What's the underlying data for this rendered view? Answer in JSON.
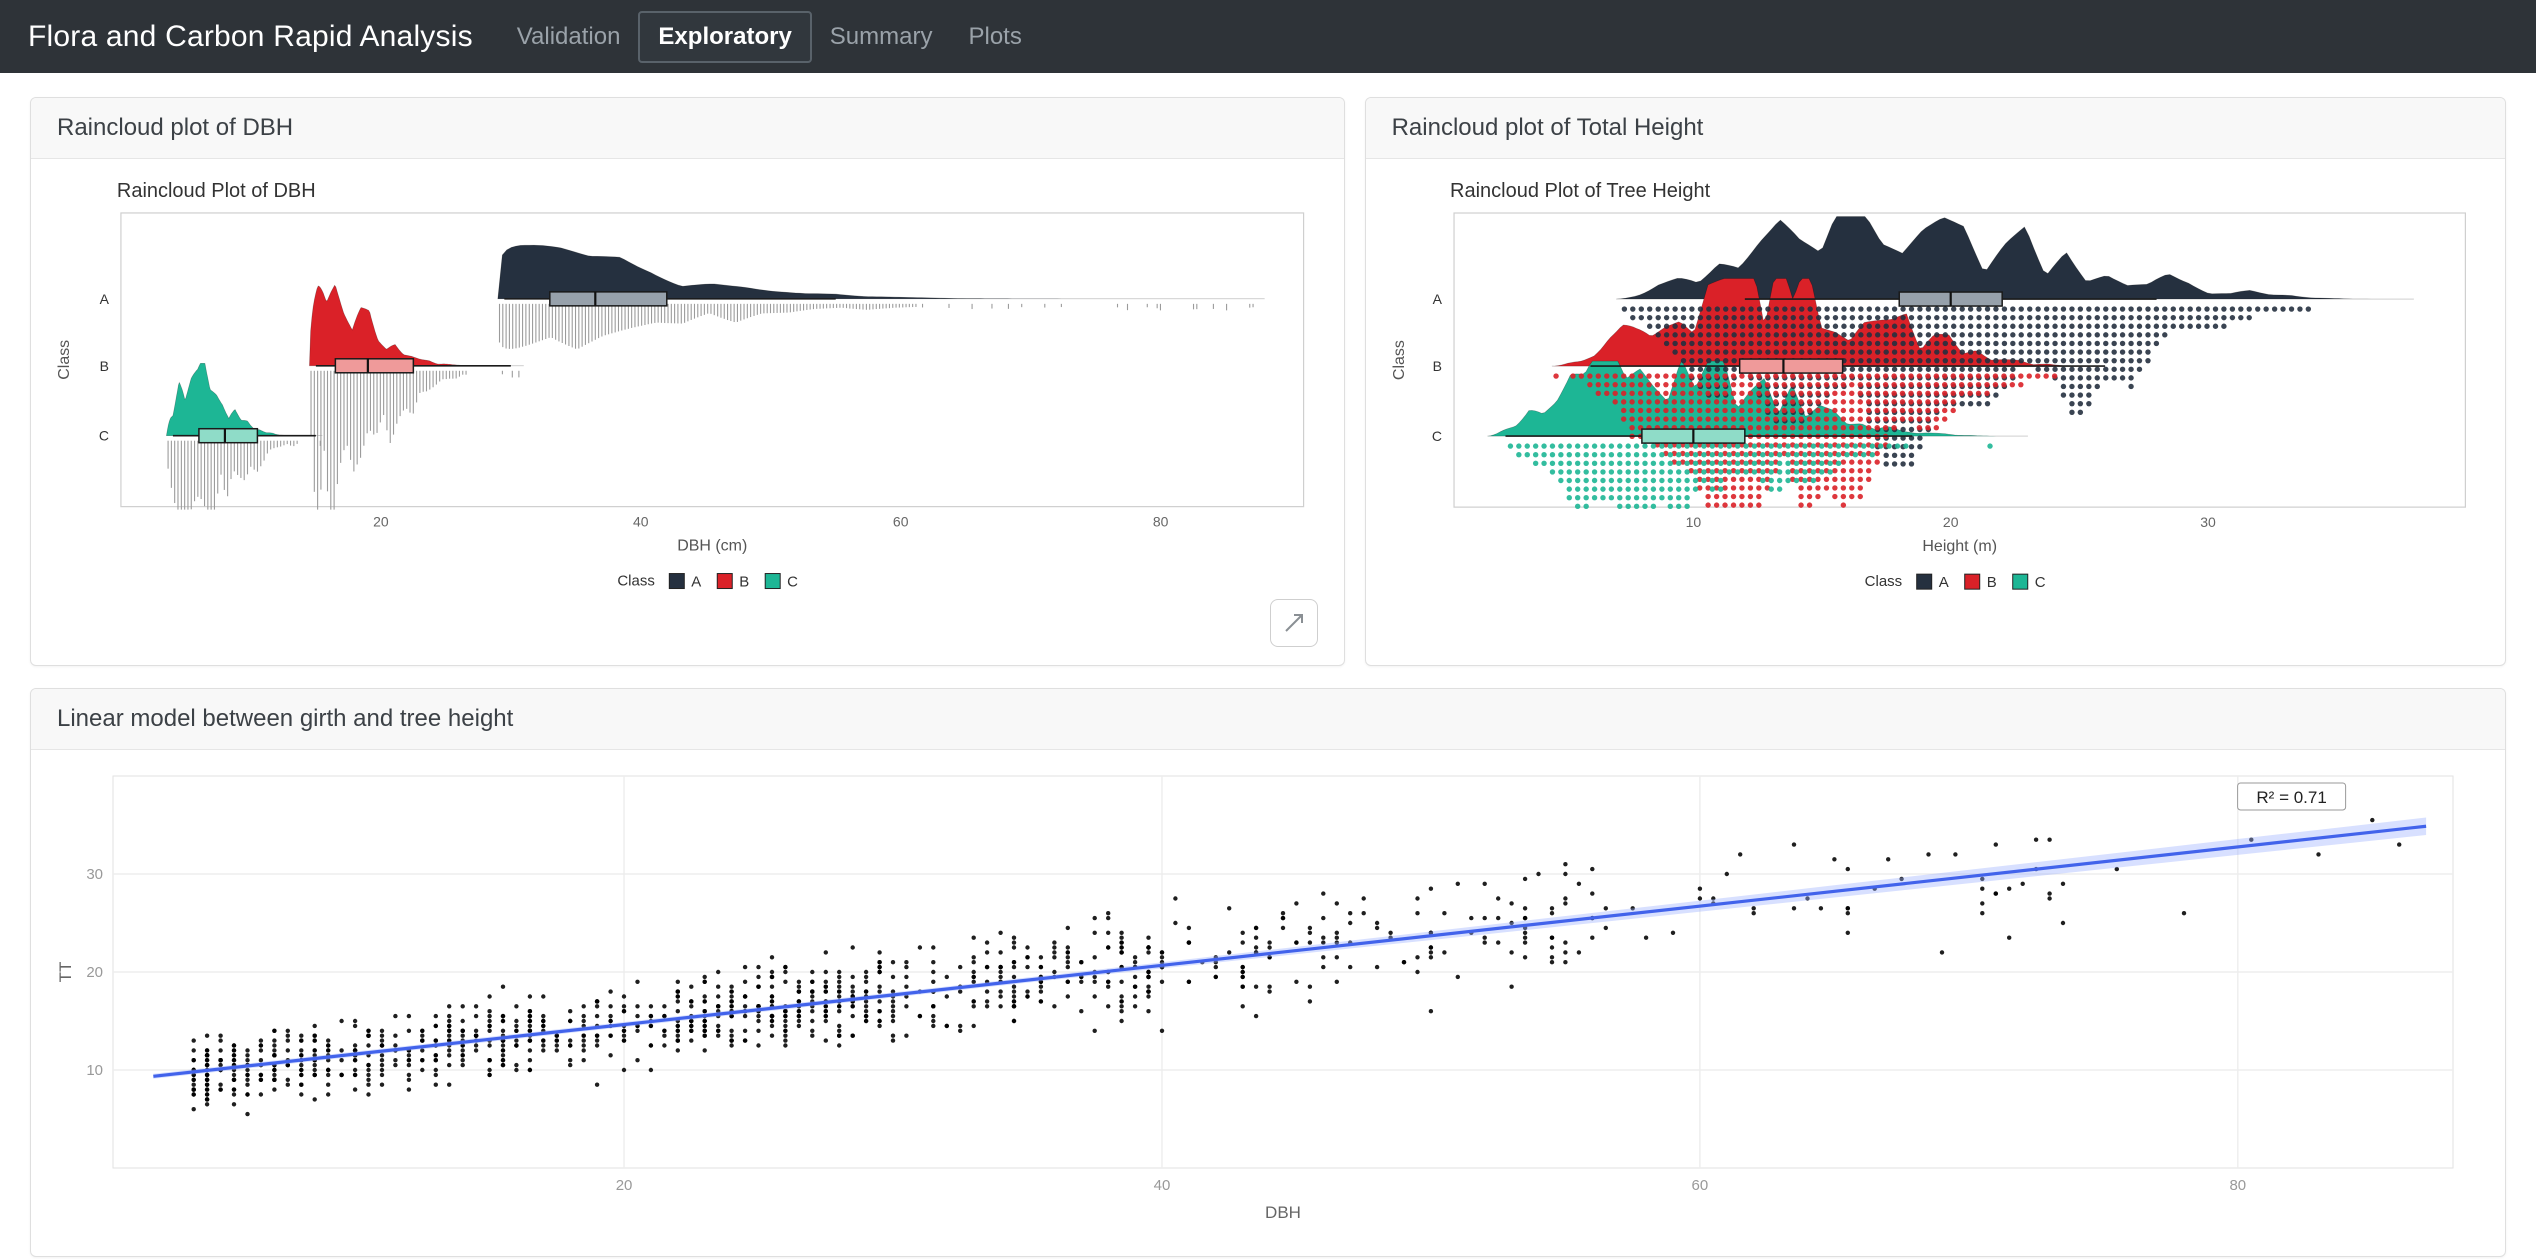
{
  "navbar": {
    "title": "Flora and Carbon Rapid Analysis",
    "items": [
      {
        "label": "Validation",
        "active": false
      },
      {
        "label": "Exploratory",
        "active": true
      },
      {
        "label": "Summary",
        "active": false
      },
      {
        "label": "Plots",
        "active": false
      }
    ]
  },
  "cards": [
    {
      "title": "Raincloud plot of DBH"
    },
    {
      "title": "Raincloud plot of Total Height"
    },
    {
      "title": "Linear model between girth and tree height"
    }
  ],
  "colors": {
    "navbar_bg": "#2e3338",
    "class_a": "#25303f",
    "class_b": "#da2128",
    "class_c": "#1db695",
    "fit_line": "#4263eb"
  },
  "chart_data": [
    {
      "id": "dbh-raincloud",
      "type": "raincloud",
      "title": "Raincloud Plot of DBH",
      "xlabel": "DBH (cm)",
      "ylabel": "Class",
      "xlim": [
        0,
        91
      ],
      "xticks": [
        20,
        40,
        60,
        80
      ],
      "rain_style": "bars",
      "legend_title": "Class",
      "classes": [
        {
          "label": "A",
          "color": "#25303f",
          "box_fill": "#97a1ab",
          "range": [
            29,
            88
          ],
          "peak": 31,
          "box": {
            "low": 29.5,
            "q1": 33,
            "median": 36.5,
            "q3": 42,
            "high": 55
          },
          "rain_range": [
            29,
            88
          ]
        },
        {
          "label": "B",
          "color": "#da2128",
          "box_fill": "#ef9a9a",
          "range": [
            14.5,
            31
          ],
          "peak": 16,
          "box": {
            "low": 15,
            "q1": 16.5,
            "median": 19,
            "q3": 22.5,
            "high": 30
          },
          "rain_range": [
            14.5,
            31
          ]
        },
        {
          "label": "C",
          "color": "#1db695",
          "box_fill": "#8fdcc8",
          "range": [
            3.5,
            15.5
          ],
          "peak": 5.5,
          "box": {
            "low": 4,
            "q1": 6,
            "median": 8,
            "q3": 10.5,
            "high": 15
          },
          "rain_range": [
            3.5,
            17
          ]
        }
      ]
    },
    {
      "id": "height-raincloud",
      "type": "raincloud",
      "title": "Raincloud Plot of Tree Height",
      "xlabel": "Height (m)",
      "ylabel": "Class",
      "xlim": [
        0.7,
        40
      ],
      "xticks": [
        10,
        20,
        30
      ],
      "rain_style": "dots",
      "legend_title": "Class",
      "classes": [
        {
          "label": "A",
          "color": "#25303f",
          "box_fill": "#97a1ab",
          "range": [
            7,
            38
          ],
          "peak": 17.5,
          "box": {
            "low": 12,
            "q1": 18,
            "median": 20,
            "q3": 22,
            "high": 28
          },
          "rain_range": [
            6.5,
            38
          ]
        },
        {
          "label": "B",
          "color": "#da2128",
          "box_fill": "#ef9a9a",
          "range": [
            4.5,
            26
          ],
          "peak": 12.5,
          "box": {
            "low": 6,
            "q1": 11.8,
            "median": 13.5,
            "q3": 15.8,
            "high": 26
          },
          "rain_range": [
            4.5,
            26.5
          ]
        },
        {
          "label": "C",
          "color": "#1db695",
          "box_fill": "#8fdcc8",
          "range": [
            2,
            23
          ],
          "peak": 8.5,
          "box": {
            "low": 2.7,
            "q1": 8,
            "median": 10,
            "q3": 12,
            "high": 18.5
          },
          "rain_range": [
            2.4,
            23
          ]
        }
      ]
    },
    {
      "id": "dbh-height-scatter",
      "type": "scatter",
      "xlabel": "DBH",
      "ylabel": "TT",
      "xlim": [
        1,
        88
      ],
      "ylim": [
        0,
        40
      ],
      "xticks": [
        20,
        40,
        60,
        80
      ],
      "yticks": [
        10,
        20,
        30
      ],
      "n_points": 1150,
      "point_color": "#000000",
      "fit": {
        "type": "linear",
        "intercept": 8.6,
        "slope": 0.302,
        "x_range": [
          2.5,
          87
        ],
        "label": "R² = 0.71",
        "color": "#4263eb"
      }
    }
  ]
}
